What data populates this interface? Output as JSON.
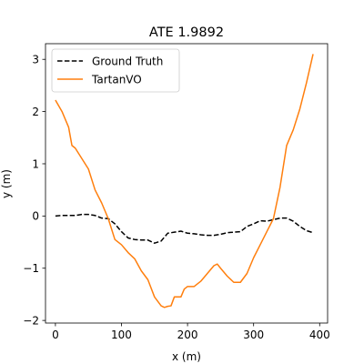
{
  "chart_data": {
    "type": "line",
    "title": "ATE 1.9892",
    "xlabel": "x (m)",
    "ylabel": "y (m)",
    "xlim": [
      -15,
      412
    ],
    "ylim": [
      -2.05,
      3.3
    ],
    "xticks": [
      0,
      100,
      200,
      300,
      400
    ],
    "yticks": [
      -2,
      -1,
      0,
      1,
      2,
      3
    ],
    "grid": false,
    "legend_position": "top-left",
    "series": [
      {
        "name": "Ground Truth",
        "color": "#000000",
        "style": "dashed",
        "x": [
          0,
          10,
          20,
          30,
          40,
          50,
          60,
          70,
          80,
          90,
          100,
          110,
          120,
          130,
          140,
          150,
          160,
          170,
          180,
          190,
          200,
          210,
          220,
          230,
          240,
          250,
          260,
          270,
          280,
          290,
          300,
          310,
          320,
          330,
          340,
          350,
          360,
          370,
          380,
          390
        ],
        "y": [
          0.0,
          0.01,
          0.01,
          0.01,
          0.03,
          0.03,
          0.01,
          -0.04,
          -0.05,
          -0.15,
          -0.3,
          -0.42,
          -0.45,
          -0.46,
          -0.46,
          -0.52,
          -0.48,
          -0.33,
          -0.31,
          -0.29,
          -0.33,
          -0.34,
          -0.36,
          -0.37,
          -0.37,
          -0.35,
          -0.32,
          -0.31,
          -0.3,
          -0.2,
          -0.15,
          -0.09,
          -0.1,
          -0.07,
          -0.04,
          -0.04,
          -0.1,
          -0.2,
          -0.28,
          -0.32
        ]
      },
      {
        "name": "TartanVO",
        "color": "#ff7f0e",
        "style": "solid",
        "x": [
          0,
          10,
          20,
          25,
          30,
          40,
          50,
          60,
          70,
          80,
          90,
          100,
          110,
          120,
          130,
          140,
          150,
          160,
          165,
          170,
          175,
          180,
          185,
          190,
          195,
          200,
          210,
          220,
          230,
          240,
          245,
          250,
          260,
          270,
          280,
          290,
          300,
          310,
          320,
          330,
          340,
          350,
          360,
          370,
          380,
          390
        ],
        "y": [
          2.22,
          2.0,
          1.7,
          1.35,
          1.3,
          1.1,
          0.9,
          0.5,
          0.25,
          -0.05,
          -0.45,
          -0.55,
          -0.7,
          -0.82,
          -1.05,
          -1.22,
          -1.55,
          -1.72,
          -1.75,
          -1.73,
          -1.72,
          -1.55,
          -1.55,
          -1.55,
          -1.4,
          -1.35,
          -1.35,
          -1.25,
          -1.1,
          -0.95,
          -0.92,
          -1.0,
          -1.15,
          -1.27,
          -1.27,
          -1.1,
          -0.8,
          -0.55,
          -0.3,
          -0.05,
          0.55,
          1.35,
          1.65,
          2.05,
          2.55,
          3.1
        ]
      }
    ]
  }
}
